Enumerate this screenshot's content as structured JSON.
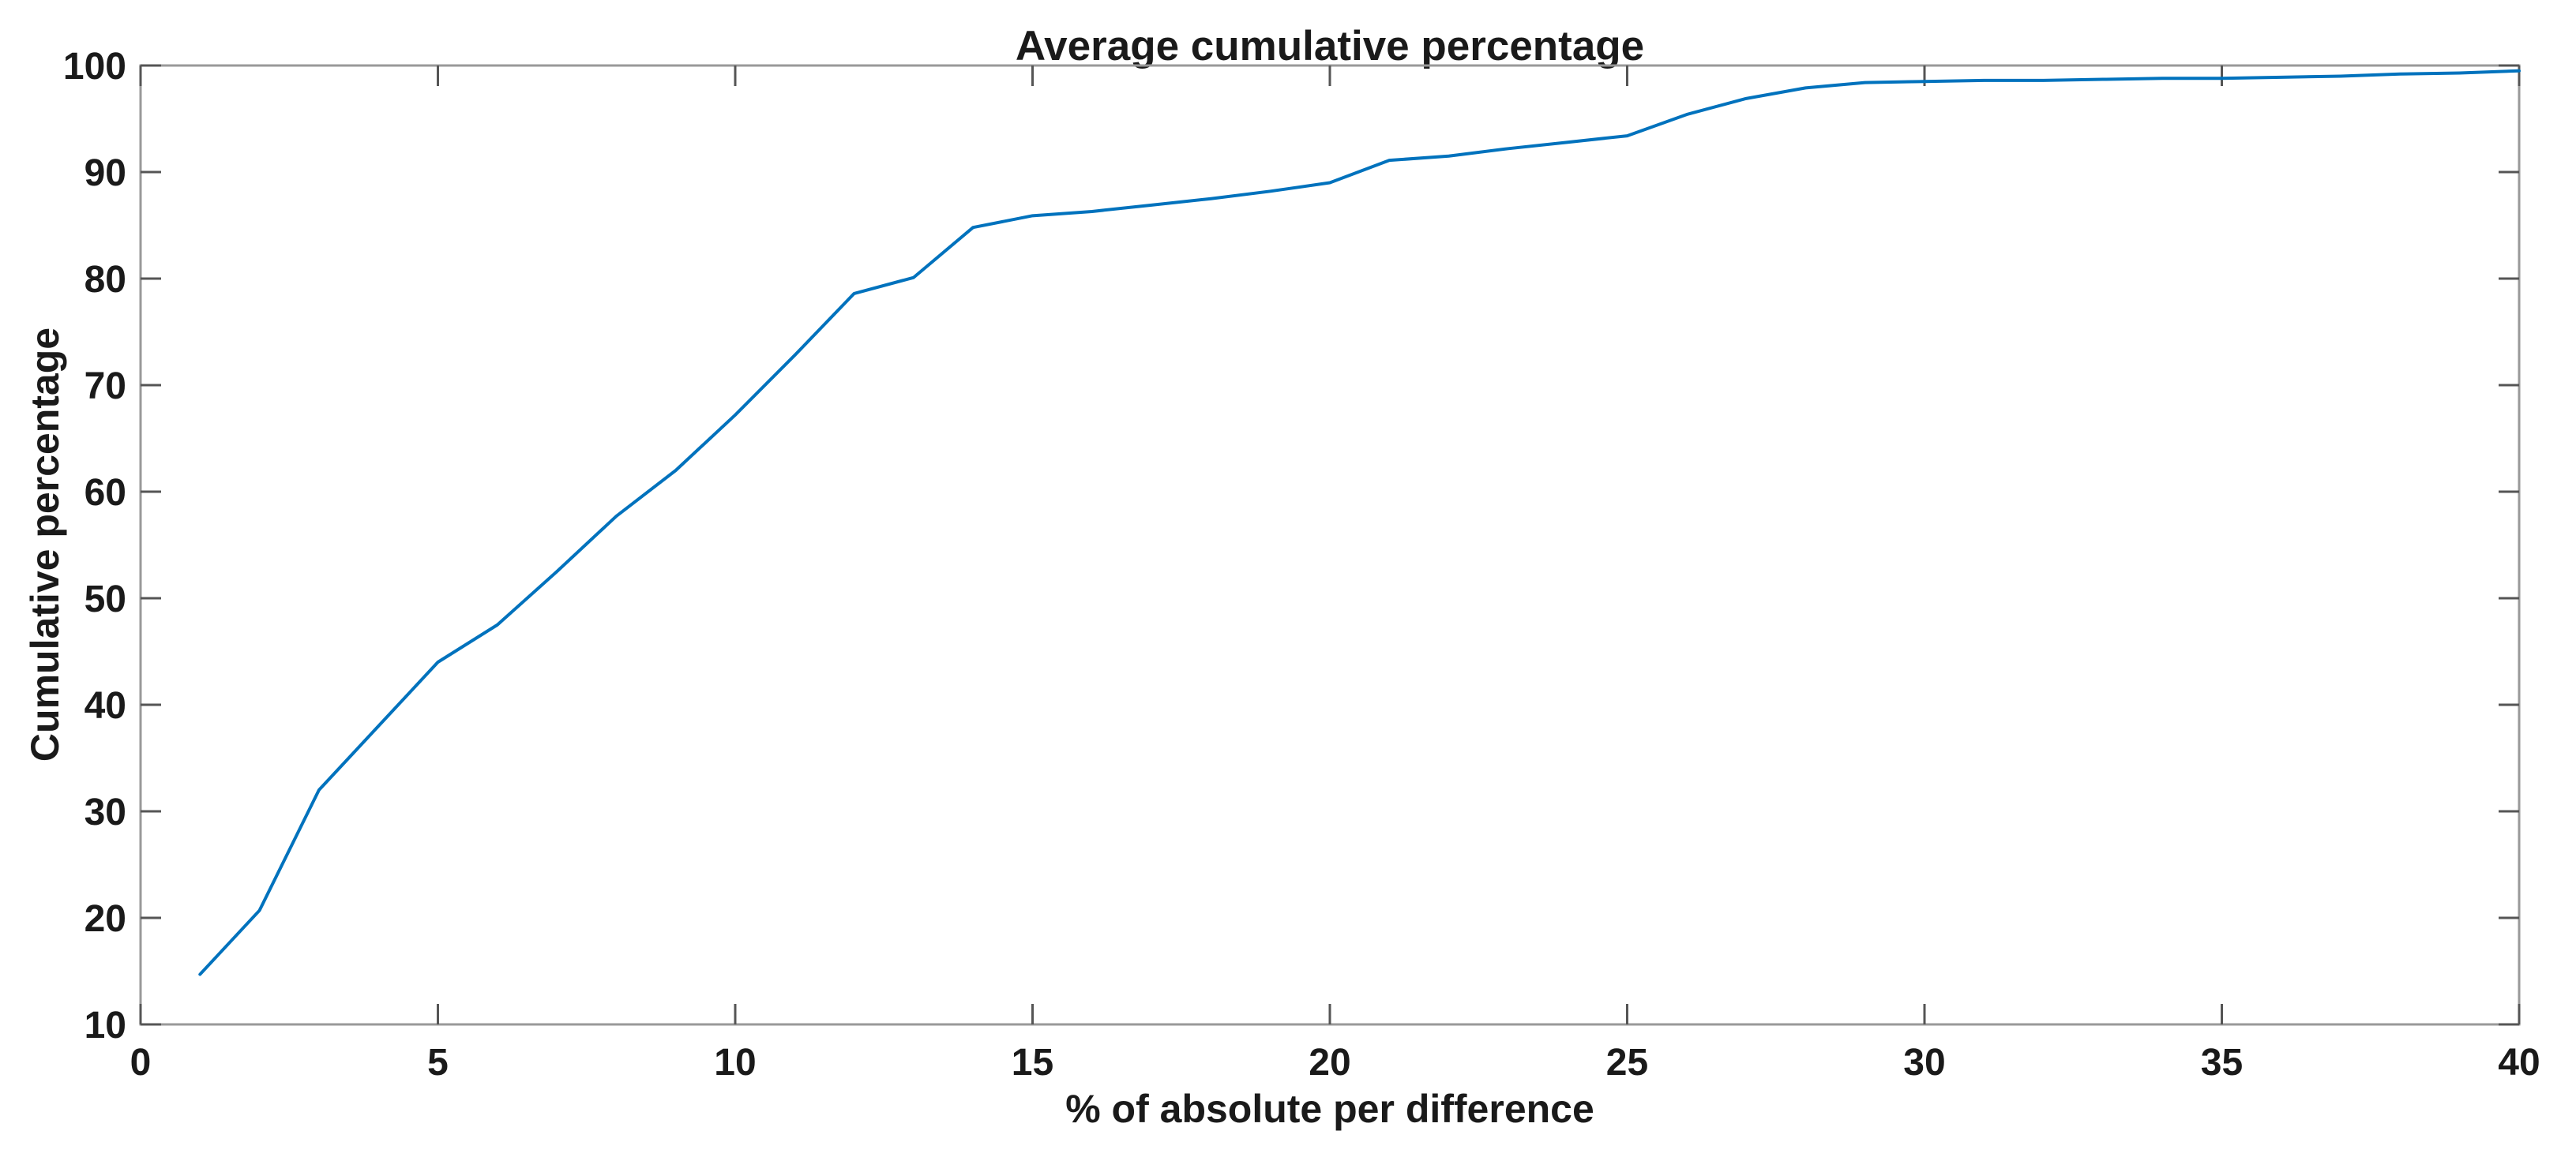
{
  "chart_data": {
    "type": "line",
    "title": "Average cumulative percentage",
    "xlabel": "% of absolute per difference",
    "ylabel": "Cumulative percentage",
    "xlim": [
      0,
      40
    ],
    "ylim": [
      10,
      100
    ],
    "xticks": [
      0,
      5,
      10,
      15,
      20,
      25,
      30,
      35,
      40
    ],
    "yticks": [
      10,
      20,
      30,
      40,
      50,
      60,
      70,
      80,
      90,
      100
    ],
    "grid": false,
    "legend": null,
    "line_color": "#0072BD",
    "axis_line_color": "#999999",
    "tick_color": "#555555",
    "text_color": "#1a1a1a",
    "x": [
      1,
      2,
      3,
      4,
      5,
      6,
      7,
      8,
      9,
      10,
      11,
      12,
      13,
      14,
      15,
      16,
      17,
      18,
      19,
      20,
      21,
      22,
      23,
      24,
      25,
      26,
      27,
      28,
      29,
      30,
      31,
      32,
      33,
      34,
      35,
      36,
      37,
      38,
      39,
      40
    ],
    "values": [
      14.7,
      20.7,
      32,
      38,
      44,
      47.5,
      52.5,
      57.7,
      62,
      67.2,
      72.8,
      78.6,
      80.1,
      84.8,
      85.9,
      86.3,
      86.9,
      87.5,
      88.2,
      89,
      91.1,
      91.5,
      92.2,
      92.8,
      93.4,
      95.4,
      96.9,
      97.9,
      98.4,
      98.5,
      98.6,
      98.6,
      98.7,
      98.8,
      98.8,
      98.9,
      99,
      99.2,
      99.3,
      99.5
    ]
  }
}
